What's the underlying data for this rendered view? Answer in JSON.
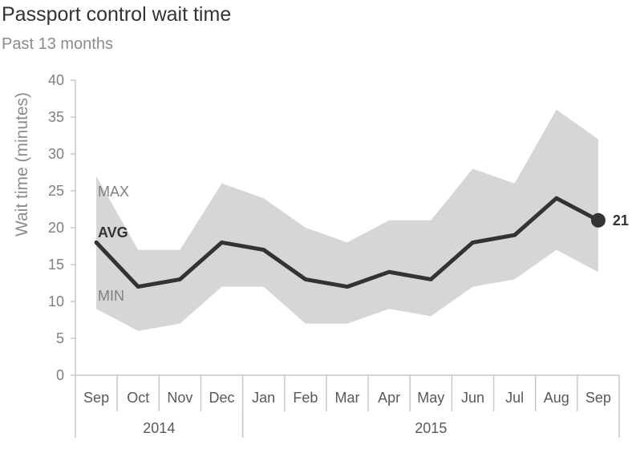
{
  "header": {
    "title": "Passport control wait time",
    "subtitle": "Past 13 months"
  },
  "colors": {
    "band": "#d6d6d6",
    "line": "#333333",
    "axis": "#c8c8c8",
    "muted_text": "#808080"
  },
  "chart_data": {
    "type": "line",
    "title": "Passport control wait time",
    "subtitle": "Past 13 months",
    "xlabel": "",
    "ylabel": "Wait time (minutes)",
    "ylim": [
      0,
      40
    ],
    "yticks": [
      0,
      5,
      10,
      15,
      20,
      25,
      30,
      35,
      40
    ],
    "categories": [
      "Sep",
      "Oct",
      "Nov",
      "Dec",
      "Jan",
      "Feb",
      "Mar",
      "Apr",
      "May",
      "Jun",
      "Jul",
      "Aug",
      "Sep"
    ],
    "year_groups": [
      {
        "label": "2014",
        "start": 0,
        "end": 3
      },
      {
        "label": "2015",
        "start": 4,
        "end": 12
      }
    ],
    "series": [
      {
        "name": "MAX",
        "values": [
          27,
          17,
          17,
          26,
          24,
          20,
          18,
          21,
          21,
          28,
          26,
          36,
          32
        ]
      },
      {
        "name": "AVG",
        "values": [
          18,
          12,
          13,
          18,
          17,
          13,
          12,
          14,
          13,
          18,
          19,
          24,
          21
        ]
      },
      {
        "name": "MIN",
        "values": [
          9,
          6,
          7,
          12,
          12,
          7,
          7,
          9,
          8,
          12,
          13,
          17,
          14
        ]
      }
    ],
    "end_label": "21",
    "grid": false,
    "legend": "inline-left"
  }
}
